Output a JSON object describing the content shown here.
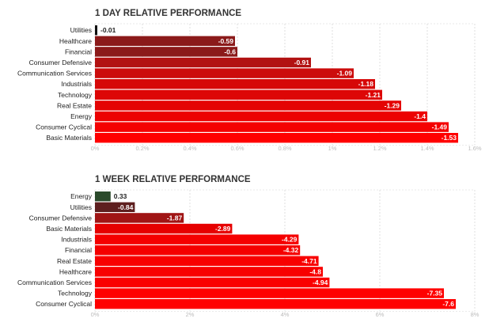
{
  "chart_data": [
    {
      "type": "bar",
      "orientation": "horizontal",
      "title": "1 DAY RELATIVE PERFORMANCE",
      "categories": [
        "Utilities",
        "Healthcare",
        "Financial",
        "Consumer Defensive",
        "Communication Services",
        "Industrials",
        "Technology",
        "Real Estate",
        "Energy",
        "Consumer Cyclical",
        "Basic Materials"
      ],
      "values": [
        -0.01,
        -0.59,
        -0.6,
        -0.91,
        -1.09,
        -1.18,
        -1.21,
        -1.29,
        -1.4,
        -1.49,
        -1.53
      ],
      "value_labels": [
        "-0.01",
        "-0.59",
        "-0.6",
        "-0.91",
        "-1.09",
        "-1.18",
        "-1.21",
        "-1.29",
        "-1.4",
        "-1.49",
        "-1.53"
      ],
      "xlim": [
        0,
        1.6
      ],
      "xticks": [
        "0%",
        "0.2%",
        "0.4%",
        "0.6%",
        "0.8%",
        "1%",
        "1.2%",
        "1.4%",
        "1.6%"
      ],
      "grid": true,
      "colors": [
        "#111111",
        "#8b1a1a",
        "#8b1a1a",
        "#b21212",
        "#cc0c0c",
        "#d60808",
        "#dd0606",
        "#e40404",
        "#ec0202",
        "#f40101",
        "#ff0000"
      ],
      "positive_color": "#2b4a2b"
    },
    {
      "type": "bar",
      "orientation": "horizontal",
      "title": "1 WEEK RELATIVE PERFORMANCE",
      "categories": [
        "Energy",
        "Utilities",
        "Consumer Defensive",
        "Basic Materials",
        "Industrials",
        "Financial",
        "Real Estate",
        "Healthcare",
        "Communication Services",
        "Technology",
        "Consumer Cyclical"
      ],
      "values": [
        0.33,
        -0.84,
        -1.87,
        -2.89,
        -4.29,
        -4.32,
        -4.71,
        -4.8,
        -4.94,
        -7.35,
        -7.6
      ],
      "value_labels": [
        "0.33",
        "-0.84",
        "-1.87",
        "-2.89",
        "-4.29",
        "-4.32",
        "-4.71",
        "-4.8",
        "-4.94",
        "-7.35",
        "-7.6"
      ],
      "xlim": [
        0,
        8
      ],
      "xticks": [
        "0%",
        "2%",
        "4%",
        "6%",
        "8%"
      ],
      "grid": true,
      "colors": [
        "#2b4a2b",
        "#5e1f1f",
        "#a01515",
        "#e60000",
        "#f50000",
        "#f50000",
        "#f80000",
        "#f80000",
        "#fa0000",
        "#ff0000",
        "#ff0000"
      ],
      "positive_color": "#2b4a2b"
    }
  ]
}
